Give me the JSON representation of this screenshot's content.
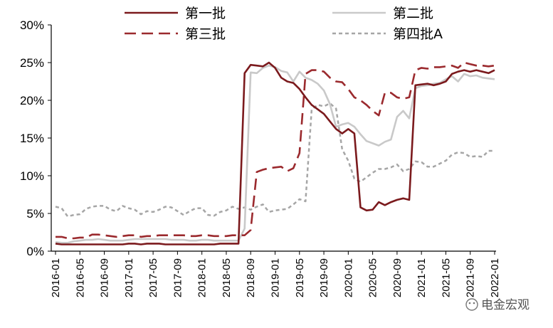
{
  "watermark": "电金宏观",
  "chart_data": {
    "type": "line",
    "title": "",
    "xlabel": "",
    "ylabel": "",
    "x_tick_labels": [
      "2016-01",
      "2016-05",
      "2016-09",
      "2017-01",
      "2017-05",
      "2017-09",
      "2018-01",
      "2018-05",
      "2018-09",
      "2019-01",
      "2019-05",
      "2019-09",
      "2020-01",
      "2020-05",
      "2020-09",
      "2021-01",
      "2021-05",
      "2021-09",
      "2022-01"
    ],
    "y_tick_labels": [
      "0%",
      "5%",
      "10%",
      "15%",
      "20%",
      "25%",
      "30%"
    ],
    "ylim": [
      0,
      30
    ],
    "y_unit": "%",
    "grid": false,
    "legend_position": "top",
    "x": [
      "2016-01",
      "2016-02",
      "2016-03",
      "2016-04",
      "2016-05",
      "2016-06",
      "2016-07",
      "2016-08",
      "2016-09",
      "2016-10",
      "2016-11",
      "2016-12",
      "2017-01",
      "2017-02",
      "2017-03",
      "2017-04",
      "2017-05",
      "2017-06",
      "2017-07",
      "2017-08",
      "2017-09",
      "2017-10",
      "2017-11",
      "2017-12",
      "2018-01",
      "2018-02",
      "2018-03",
      "2018-04",
      "2018-05",
      "2018-06",
      "2018-07",
      "2018-08",
      "2018-09",
      "2018-10",
      "2018-11",
      "2018-12",
      "2019-01",
      "2019-02",
      "2019-03",
      "2019-04",
      "2019-05",
      "2019-06",
      "2019-07",
      "2019-08",
      "2019-09",
      "2019-10",
      "2019-11",
      "2019-12",
      "2020-01",
      "2020-02",
      "2020-03",
      "2020-04",
      "2020-05",
      "2020-06",
      "2020-07",
      "2020-08",
      "2020-09",
      "2020-10",
      "2020-11",
      "2020-12",
      "2021-01",
      "2021-02",
      "2021-03",
      "2021-04",
      "2021-05",
      "2021-06",
      "2021-07",
      "2021-08",
      "2021-09",
      "2021-10",
      "2021-11",
      "2021-12",
      "2022-01"
    ],
    "series": [
      {
        "name": "第一批",
        "color": "#7b1a1d",
        "style": "solid",
        "values": [
          1.0,
          0.9,
          0.9,
          0.9,
          0.9,
          0.9,
          0.9,
          0.9,
          0.9,
          0.9,
          0.9,
          0.9,
          1.0,
          1.0,
          0.9,
          1.0,
          1.0,
          1.0,
          0.9,
          0.9,
          0.9,
          0.9,
          0.9,
          0.9,
          0.9,
          0.9,
          0.9,
          1.0,
          1.0,
          1.0,
          1.0,
          23.6,
          24.7,
          24.6,
          24.5,
          25.0,
          24.3,
          23.0,
          22.5,
          22.3,
          21.5,
          20.4,
          19.4,
          18.8,
          18.2,
          17.2,
          16.2,
          15.6,
          16.2,
          15.6,
          5.8,
          5.4,
          5.5,
          6.5,
          6.1,
          6.5,
          6.8,
          7.0,
          6.8,
          22.0,
          22.1,
          22.2,
          22.0,
          22.2,
          22.5,
          23.5,
          23.8,
          24.0,
          23.8,
          24.0,
          23.8,
          23.6,
          24.0
        ]
      },
      {
        "name": "第二批",
        "color": "#c9c9c9",
        "style": "solid",
        "values": [
          1.2,
          1.1,
          1.1,
          1.3,
          1.4,
          1.5,
          1.5,
          1.6,
          1.5,
          1.4,
          1.4,
          1.4,
          1.5,
          1.6,
          1.6,
          1.6,
          1.6,
          1.6,
          1.6,
          1.5,
          1.5,
          1.5,
          1.4,
          1.4,
          1.5,
          1.5,
          1.4,
          1.4,
          1.4,
          1.4,
          1.4,
          3.0,
          23.7,
          23.6,
          24.3,
          24.6,
          24.4,
          23.9,
          23.7,
          22.5,
          23.8,
          23.0,
          22.7,
          22.2,
          21.3,
          19.5,
          16.5,
          16.8,
          17.0,
          16.5,
          15.5,
          14.6,
          14.3,
          14.0,
          14.5,
          14.8,
          17.8,
          18.6,
          17.6,
          21.6,
          21.9,
          22.0,
          22.2,
          22.3,
          22.8,
          23.2,
          22.5,
          23.5,
          23.2,
          23.3,
          23.0,
          22.9,
          22.8
        ]
      },
      {
        "name": "第三批",
        "color": "#9b2a2e",
        "style": "dash",
        "values": [
          1.9,
          1.9,
          1.7,
          1.7,
          1.8,
          1.8,
          2.2,
          2.2,
          2.1,
          2.0,
          1.9,
          2.0,
          2.1,
          2.1,
          1.9,
          2.0,
          2.0,
          2.1,
          2.1,
          2.1,
          2.1,
          2.1,
          2.0,
          2.0,
          2.1,
          2.1,
          2.0,
          2.0,
          2.0,
          2.1,
          2.1,
          2.1,
          2.8,
          10.5,
          10.8,
          11.0,
          11.1,
          11.2,
          10.6,
          11.0,
          13.0,
          23.5,
          24.0,
          24.0,
          23.8,
          23.0,
          22.5,
          22.4,
          21.5,
          20.4,
          20.0,
          19.4,
          18.6,
          18.0,
          21.0,
          21.0,
          20.4,
          20.2,
          20.4,
          24.0,
          24.3,
          24.2,
          24.4,
          24.4,
          24.5,
          24.6,
          24.3,
          25.0,
          24.8,
          24.6,
          24.6,
          24.5,
          24.6
        ]
      },
      {
        "name": "第四批A",
        "color": "#a6a6a6",
        "style": "dot",
        "values": [
          5.9,
          5.7,
          4.6,
          4.8,
          4.9,
          5.6,
          5.9,
          6.0,
          6.0,
          5.5,
          5.3,
          6.0,
          5.7,
          5.5,
          4.9,
          5.3,
          5.2,
          5.5,
          5.9,
          5.8,
          5.3,
          4.8,
          5.3,
          5.7,
          5.7,
          4.8,
          4.7,
          5.2,
          5.4,
          5.9,
          5.6,
          5.8,
          5.5,
          5.9,
          6.2,
          5.2,
          5.4,
          5.5,
          5.6,
          6.2,
          6.9,
          6.6,
          18.8,
          19.4,
          19.2,
          19.6,
          18.9,
          13.5,
          12.0,
          9.6,
          9.2,
          9.8,
          10.4,
          10.9,
          10.9,
          11.1,
          11.5,
          10.6,
          10.9,
          11.9,
          11.8,
          11.2,
          11.2,
          11.6,
          12.0,
          12.8,
          13.1,
          13.0,
          12.5,
          12.6,
          12.5,
          13.3,
          13.3
        ]
      }
    ]
  }
}
